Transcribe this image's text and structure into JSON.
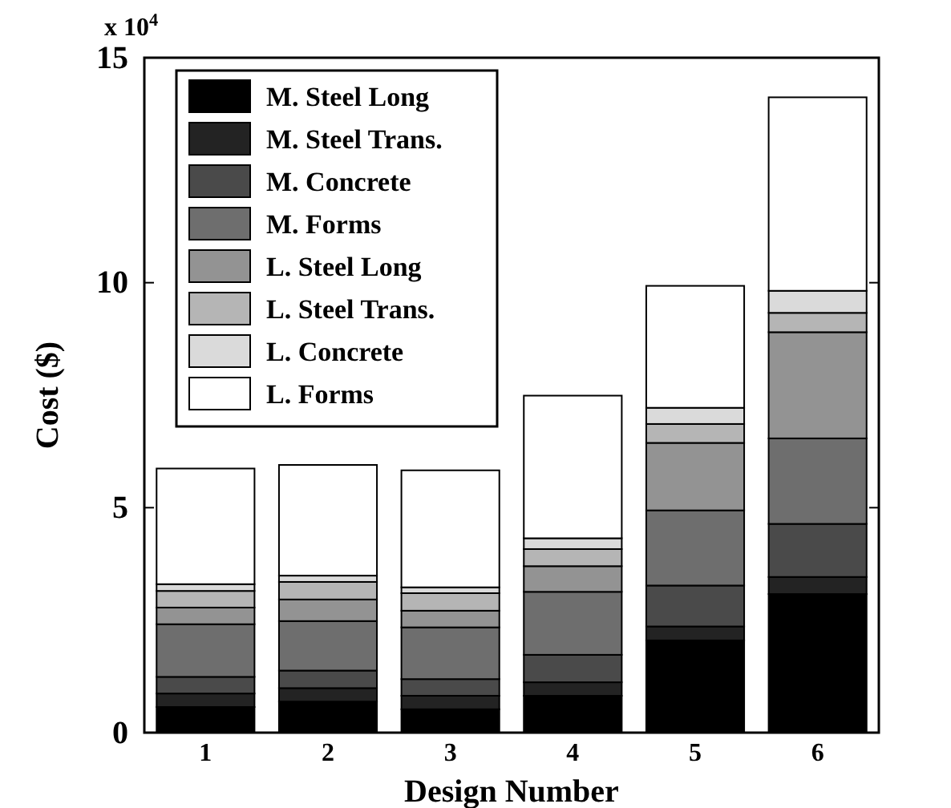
{
  "chart_data": {
    "type": "bar",
    "stacked": true,
    "xlabel": "Design Number",
    "ylabel": "Cost ($)",
    "annotations": [
      "x 10$^{4}$"
    ],
    "categories": [
      "1",
      "2",
      "3",
      "4",
      "5",
      "6"
    ],
    "series": [
      {
        "name": "M. Steel Long",
        "color": "#000000",
        "values": [
          0.57,
          0.69,
          0.52,
          0.82,
          2.05,
          3.08
        ]
      },
      {
        "name": "M. Steel Trans.",
        "color": "#232323",
        "values": [
          0.3,
          0.3,
          0.3,
          0.3,
          0.31,
          0.38
        ]
      },
      {
        "name": "M. Concrete",
        "color": "#4a4a4a",
        "values": [
          0.37,
          0.39,
          0.37,
          0.61,
          0.91,
          1.18
        ]
      },
      {
        "name": "M. Forms",
        "color": "#6e6e6e",
        "values": [
          1.17,
          1.1,
          1.15,
          1.4,
          1.67,
          1.9
        ]
      },
      {
        "name": "L. Steel Long",
        "color": "#939393",
        "values": [
          0.37,
          0.48,
          0.37,
          0.57,
          1.5,
          2.36
        ]
      },
      {
        "name": "L. Steel Trans.",
        "color": "#b5b5b5",
        "values": [
          0.37,
          0.39,
          0.39,
          0.38,
          0.42,
          0.43
        ]
      },
      {
        "name": "L. Concrete",
        "color": "#dadada",
        "values": [
          0.15,
          0.14,
          0.13,
          0.24,
          0.36,
          0.49
        ]
      },
      {
        "name": "L. Forms",
        "color": "#ffffff",
        "values": [
          2.57,
          2.46,
          2.6,
          3.17,
          2.71,
          4.3
        ]
      }
    ],
    "ylim": [
      0,
      15
    ],
    "yticks": [
      0,
      5,
      10,
      15
    ],
    "legend": "top left"
  }
}
